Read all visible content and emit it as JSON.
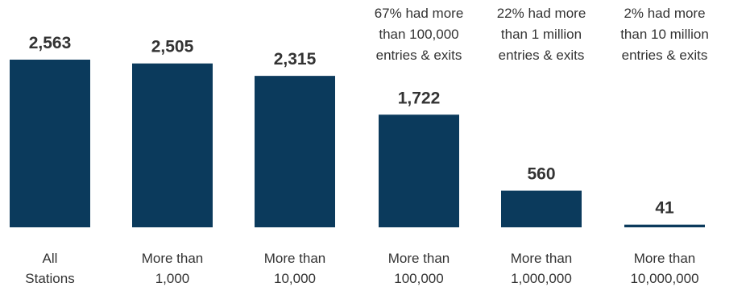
{
  "colors": {
    "bar": "#0b3a5c",
    "text": "#333333",
    "background": "#ffffff"
  },
  "chart_data": {
    "type": "bar",
    "categories": [
      [
        "All",
        "Stations"
      ],
      [
        "More than",
        "1,000"
      ],
      [
        "More than",
        "10,000"
      ],
      [
        "More than",
        "100,000"
      ],
      [
        "More than",
        "1,000,000"
      ],
      [
        "More than",
        "10,000,000"
      ]
    ],
    "values": [
      2563,
      2505,
      2315,
      1722,
      560,
      41
    ],
    "value_labels": [
      "2,563",
      "2,505",
      "2,315",
      "1,722",
      "560",
      "41"
    ],
    "annotations": [
      null,
      null,
      null,
      [
        "67% had more",
        "than 100,000",
        "entries & exits"
      ],
      [
        "22% had more",
        "than 1 million",
        "entries & exits"
      ],
      [
        "2% had more",
        "than 10 million",
        "entries & exits"
      ]
    ],
    "ylim": [
      0,
      2563
    ],
    "grid": false,
    "legend": "none"
  }
}
